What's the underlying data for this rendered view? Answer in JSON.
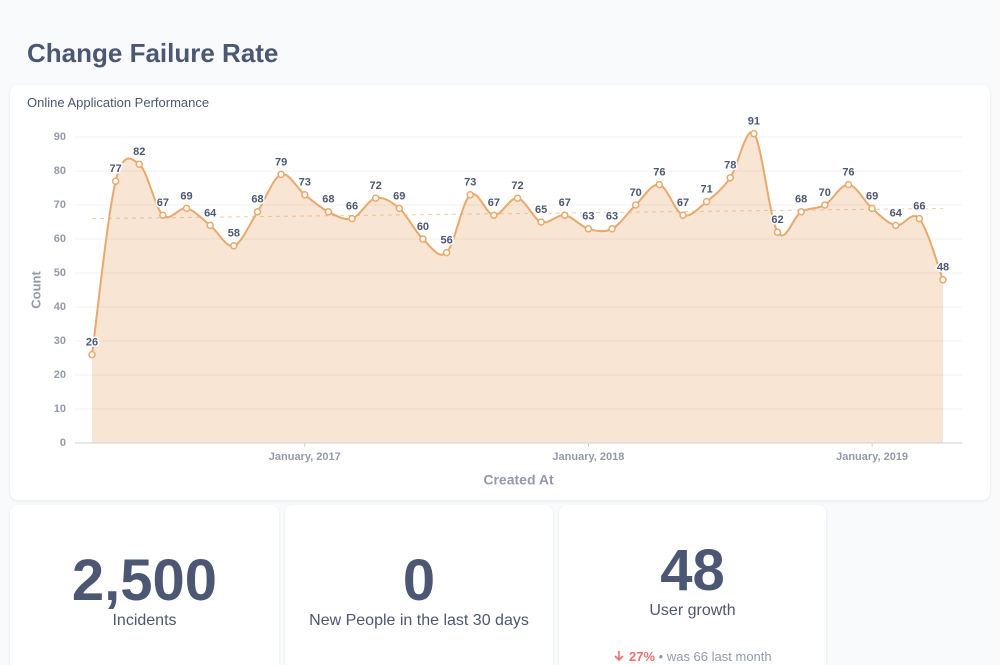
{
  "header": {
    "title": "Change Failure Rate"
  },
  "chart_data": {
    "type": "area",
    "title": "Online Application Performance",
    "x_label": "Created At",
    "y_label": "Count",
    "categories": [
      null,
      null,
      null,
      null,
      null,
      null,
      null,
      null,
      null,
      "January, 2017",
      null,
      null,
      null,
      null,
      null,
      null,
      null,
      null,
      null,
      null,
      null,
      "January, 2018",
      null,
      null,
      null,
      null,
      null,
      null,
      null,
      null,
      null,
      null,
      null,
      "January, 2019",
      null,
      null,
      null
    ],
    "series": [
      {
        "name": "Count",
        "color": "#e9a96c",
        "values": [
          26,
          77,
          82,
          67,
          69,
          64,
          58,
          68,
          79,
          73,
          68,
          66,
          72,
          69,
          60,
          56,
          73,
          67,
          72,
          65,
          67,
          63,
          63,
          70,
          76,
          67,
          71,
          78,
          91,
          62,
          68,
          70,
          76,
          69,
          64,
          66,
          48
        ]
      }
    ],
    "trend_line": {
      "start": 66,
      "end": 69
    },
    "ylim": [
      0,
      90
    ],
    "yticks": [
      0,
      10,
      20,
      30,
      40,
      50,
      60,
      70,
      80,
      90
    ],
    "grid": true
  },
  "cards": [
    {
      "value": "2,500",
      "label": "Incidents"
    },
    {
      "value": "0",
      "label": "New People in the last 30 days"
    },
    {
      "value": "48",
      "label": "User growth",
      "change": "27%",
      "separator": "•",
      "comparison": "was 66",
      "period": "last month"
    }
  ]
}
